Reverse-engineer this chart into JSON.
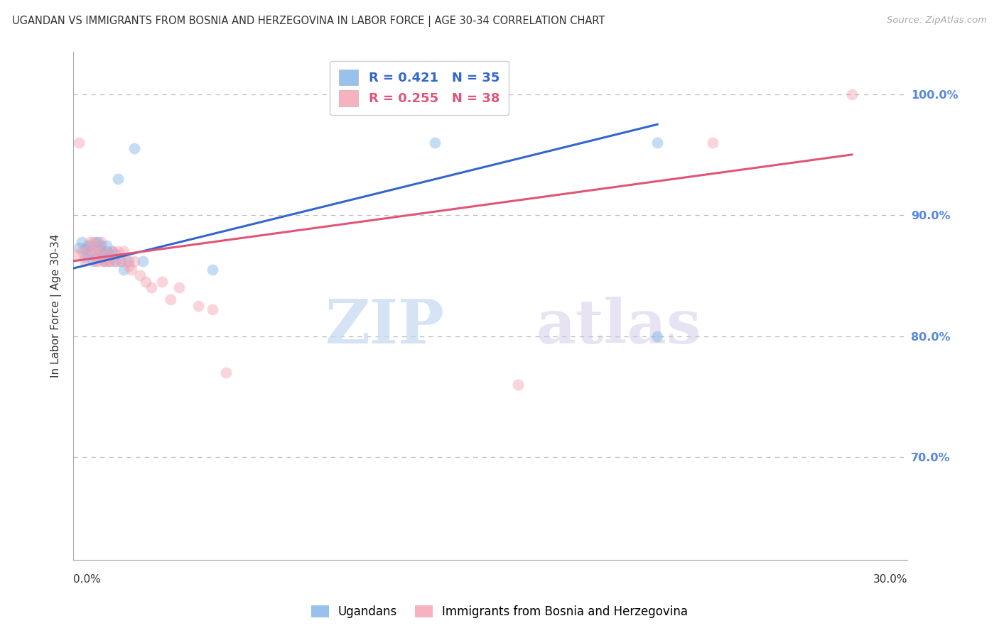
{
  "title": "UGANDAN VS IMMIGRANTS FROM BOSNIA AND HERZEGOVINA IN LABOR FORCE | AGE 30-34 CORRELATION CHART",
  "source": "Source: ZipAtlas.com",
  "ylabel": "In Labor Force | Age 30-34",
  "ytick_labels": [
    "100.0%",
    "90.0%",
    "80.0%",
    "70.0%"
  ],
  "ytick_values": [
    1.0,
    0.9,
    0.8,
    0.7
  ],
  "xlim": [
    0.0,
    0.3
  ],
  "ylim": [
    0.615,
    1.035
  ],
  "blue_color": "#7EB3E8",
  "pink_color": "#F4A0B0",
  "blue_line_color": "#3366CC",
  "pink_line_color": "#E05577",
  "legend_blue_r": "R = 0.421",
  "legend_blue_n": "N = 35",
  "legend_pink_r": "R = 0.255",
  "legend_pink_n": "N = 38",
  "blue_scatter_x": [
    0.002,
    0.003,
    0.004,
    0.004,
    0.005,
    0.005,
    0.006,
    0.006,
    0.007,
    0.008,
    0.008,
    0.009,
    0.009,
    0.009,
    0.01,
    0.01,
    0.011,
    0.011,
    0.012,
    0.012,
    0.013,
    0.013,
    0.014,
    0.015,
    0.015,
    0.016,
    0.017,
    0.018,
    0.02,
    0.022,
    0.025,
    0.05,
    0.13,
    0.21,
    0.21
  ],
  "blue_scatter_y": [
    0.873,
    0.878,
    0.865,
    0.872,
    0.868,
    0.875,
    0.87,
    0.875,
    0.862,
    0.865,
    0.878,
    0.865,
    0.872,
    0.878,
    0.87,
    0.875,
    0.862,
    0.868,
    0.87,
    0.875,
    0.862,
    0.868,
    0.87,
    0.862,
    0.868,
    0.93,
    0.862,
    0.855,
    0.862,
    0.955,
    0.862,
    0.855,
    0.96,
    0.96,
    0.8
  ],
  "pink_scatter_x": [
    0.001,
    0.002,
    0.003,
    0.004,
    0.005,
    0.006,
    0.007,
    0.007,
    0.008,
    0.008,
    0.009,
    0.01,
    0.01,
    0.011,
    0.012,
    0.012,
    0.013,
    0.014,
    0.015,
    0.016,
    0.017,
    0.018,
    0.019,
    0.02,
    0.021,
    0.022,
    0.024,
    0.026,
    0.028,
    0.032,
    0.035,
    0.038,
    0.045,
    0.05,
    0.055,
    0.16,
    0.23,
    0.28
  ],
  "pink_scatter_y": [
    0.867,
    0.96,
    0.87,
    0.862,
    0.87,
    0.878,
    0.87,
    0.878,
    0.862,
    0.87,
    0.862,
    0.87,
    0.878,
    0.862,
    0.862,
    0.868,
    0.862,
    0.87,
    0.862,
    0.87,
    0.862,
    0.87,
    0.862,
    0.858,
    0.855,
    0.862,
    0.85,
    0.845,
    0.84,
    0.845,
    0.83,
    0.84,
    0.825,
    0.822,
    0.77,
    0.76,
    0.96,
    1.0
  ],
  "blue_line_x": [
    0.0,
    0.21
  ],
  "blue_line_y": [
    0.856,
    0.975
  ],
  "pink_line_x": [
    0.0,
    0.28
  ],
  "pink_line_y": [
    0.862,
    0.95
  ],
  "watermark_zip": "ZIP",
  "watermark_atlas": "atlas",
  "background_color": "#FFFFFF",
  "grid_color": "#BBBBBB",
  "right_yaxis_color": "#5588DD",
  "title_color": "#333333",
  "marker_size": 130,
  "marker_alpha": 0.45
}
